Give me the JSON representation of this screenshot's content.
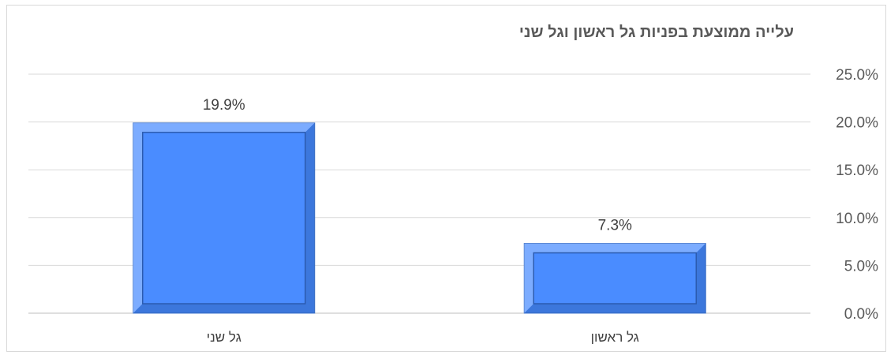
{
  "chart_data": {
    "type": "bar",
    "title": "עלייה ממוצעת בפניות גל ראשון וגל שני",
    "categories": [
      "גל שני",
      "גל ראשון"
    ],
    "values": [
      19.9,
      7.3
    ],
    "data_labels": [
      "19.9%",
      "7.3%"
    ],
    "y_ticks": [
      "0.0%",
      "5.0%",
      "10.0%",
      "15.0%",
      "20.0%",
      "25.0%"
    ],
    "ylim": [
      0,
      25
    ],
    "y_axis_side": "right",
    "grid": true,
    "legend": "none",
    "bar_color": "#4a8cff"
  }
}
